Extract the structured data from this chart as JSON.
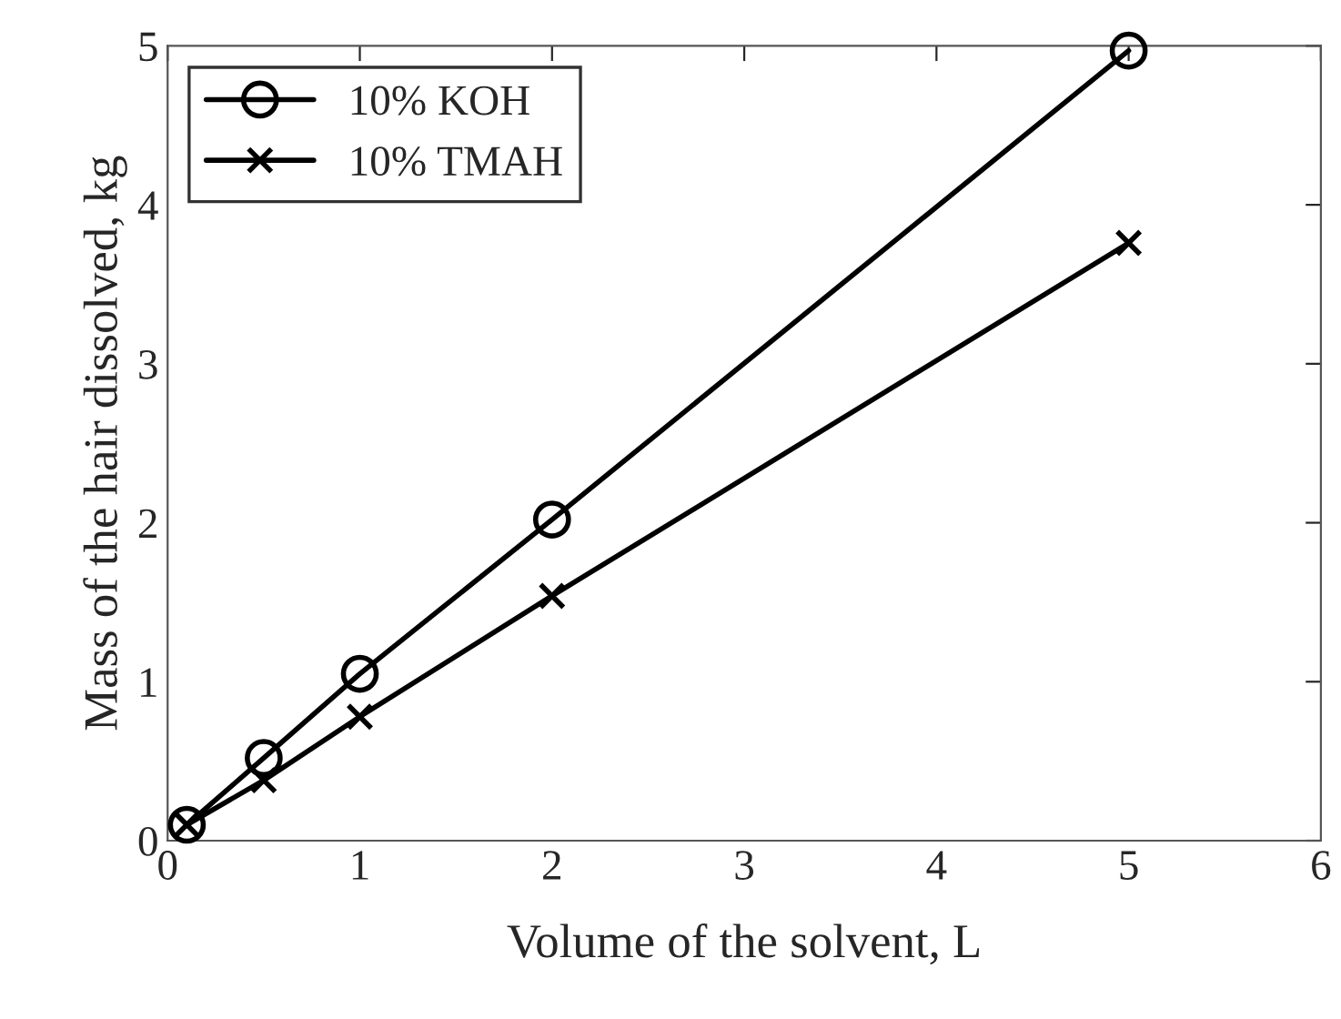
{
  "chart_data": {
    "type": "line",
    "xlabel": "Volume of the solvent, L",
    "ylabel": "Mass of the hair dissolved, kg",
    "x": [
      0.1,
      0.5,
      1,
      2,
      5
    ],
    "series": [
      {
        "name": "10% KOH",
        "color": "#000000",
        "marker": "circle",
        "values": [
          0.1,
          0.52,
          1.05,
          2.02,
          4.97
        ]
      },
      {
        "name": "10% TMAH",
        "color": "#000000",
        "marker": "cross",
        "values": [
          0.1,
          0.38,
          0.78,
          1.54,
          3.76
        ]
      }
    ],
    "xlim": [
      0,
      6
    ],
    "xticks": [
      0,
      1,
      2,
      3,
      4,
      5,
      6
    ],
    "ylim": [
      0,
      5
    ],
    "yticks": [
      0,
      1,
      2,
      3,
      4,
      5
    ],
    "grid": false,
    "legend": "top left",
    "line_style": "solid"
  }
}
